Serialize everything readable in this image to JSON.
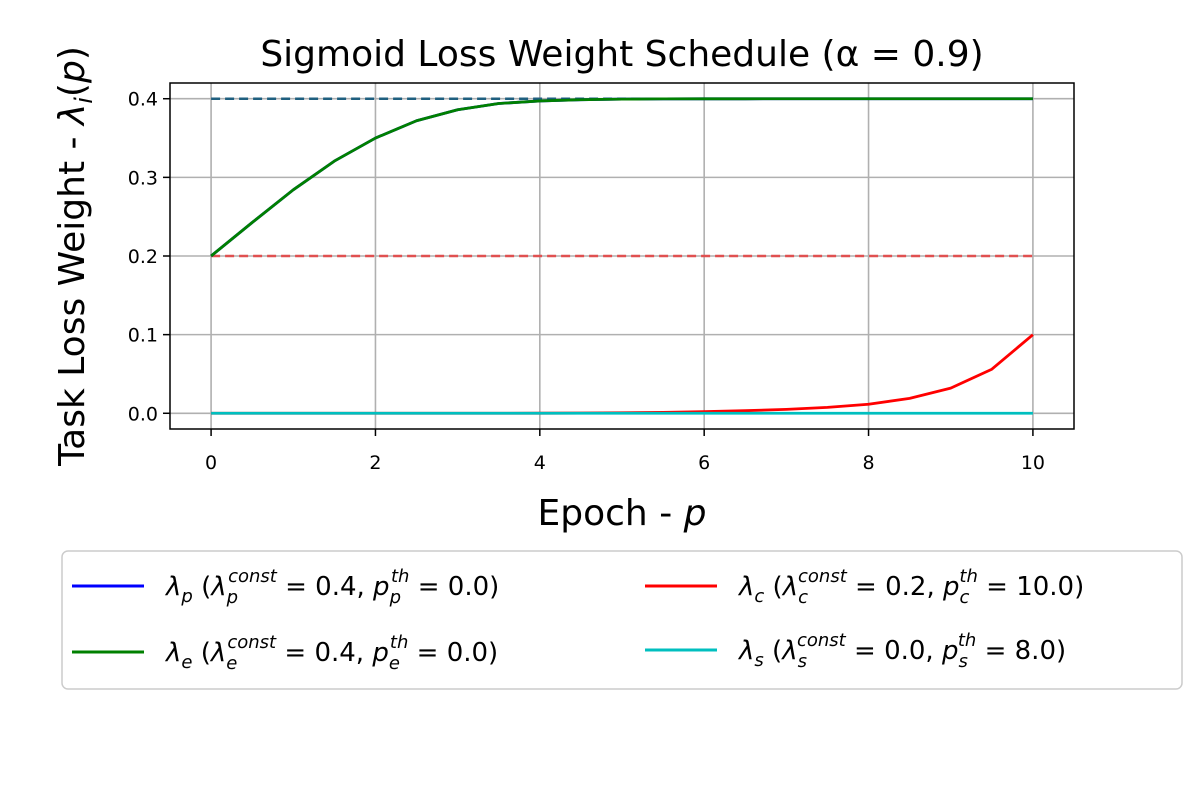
{
  "chart_data": {
    "type": "line",
    "title": "Sigmoid Loss Weight Schedule (α = 0.9)",
    "xlabel": "Epoch - p",
    "ylabel": "Task Loss Weight - λi(p)",
    "xlim": [
      -0.5,
      10.5
    ],
    "ylim": [
      -0.02,
      0.42
    ],
    "xticks": [
      0,
      2,
      4,
      6,
      8,
      10
    ],
    "xtick_labels": [
      "0",
      "2",
      "4",
      "6",
      "8",
      "10"
    ],
    "yticks": [
      0.0,
      0.1,
      0.2,
      0.3,
      0.4
    ],
    "ytick_labels": [
      "0.0",
      "0.1",
      "0.2",
      "0.3",
      "0.4"
    ],
    "grid": true,
    "legend_placement": "below-plot",
    "legend_columns": 2,
    "x": [
      0,
      0.5,
      1,
      1.5,
      2,
      2.5,
      3,
      3.5,
      4,
      4.5,
      5,
      5.5,
      6,
      6.5,
      7,
      7.5,
      8,
      8.5,
      9,
      9.5,
      10
    ],
    "series": [
      {
        "name": "λp (λp const = 0.4, pp th = 0.0)",
        "legend": {
          "sym": "λ",
          "sub": "p",
          "c1": "λ",
          "c1sub": "p",
          "c1sup": "const",
          "v1": "0.4",
          "c2": "p",
          "c2sub": "p",
          "c2sup": "th",
          "v2": "0.0"
        },
        "color": "#0000ff",
        "style": "solid",
        "values": [
          0.2,
          0.2426,
          0.2842,
          0.3207,
          0.35,
          0.372,
          0.386,
          0.3939,
          0.3972,
          0.3988,
          0.3995,
          0.3998,
          0.3999,
          0.3999,
          0.4,
          0.4,
          0.4,
          0.4,
          0.4,
          0.4,
          0.4
        ]
      },
      {
        "name": "λe (λe const = 0.4, pe th = 0.0)",
        "legend": {
          "sym": "λ",
          "sub": "e",
          "c1": "λ",
          "c1sub": "e",
          "c1sup": "const",
          "v1": "0.4",
          "c2": "p",
          "c2sub": "e",
          "c2sup": "th",
          "v2": "0.0"
        },
        "color": "#008000",
        "style": "solid",
        "values": [
          0.2,
          0.2426,
          0.2842,
          0.3207,
          0.35,
          0.372,
          0.386,
          0.3939,
          0.3972,
          0.3988,
          0.3995,
          0.3998,
          0.3999,
          0.3999,
          0.4,
          0.4,
          0.4,
          0.4,
          0.4,
          0.4,
          0.4
        ]
      },
      {
        "name": "λc (λc const = 0.2, pc th = 10.0)",
        "legend": {
          "sym": "λ",
          "sub": "c",
          "c1": "λ",
          "c1sub": "c",
          "c1sup": "const",
          "v1": "0.2",
          "c2": "p",
          "c2sub": "c",
          "c2sup": "th",
          "v2": "10.0"
        },
        "color": "#ff0000",
        "style": "solid",
        "values": [
          0.0,
          0.0,
          0.0,
          0.0,
          0.0,
          0.0,
          0.0,
          0.0,
          0.0001,
          0.0003,
          0.0006,
          0.0011,
          0.002,
          0.0033,
          0.005,
          0.0075,
          0.0115,
          0.019,
          0.032,
          0.056,
          0.1
        ]
      },
      {
        "name": "λs (λs const = 0.0, ps th = 8.0)",
        "legend": {
          "sym": "λ",
          "sub": "s",
          "c1": "λ",
          "c1sub": "s",
          "c1sup": "const",
          "v1": "0.0",
          "c2": "p",
          "c2sub": "s",
          "c2sup": "th",
          "v2": "8.0"
        },
        "color": "#00bfbf",
        "style": "solid",
        "values": [
          0,
          0,
          0,
          0,
          0,
          0,
          0,
          0,
          0,
          0,
          0,
          0,
          0,
          0,
          0,
          0,
          0,
          0,
          0,
          0,
          0
        ]
      }
    ],
    "reference_lines": [
      {
        "y": 0.4,
        "color": "#1f5f7f",
        "style": "dashed"
      },
      {
        "y": 0.2,
        "color": "#e05050",
        "style": "dashed"
      }
    ]
  }
}
